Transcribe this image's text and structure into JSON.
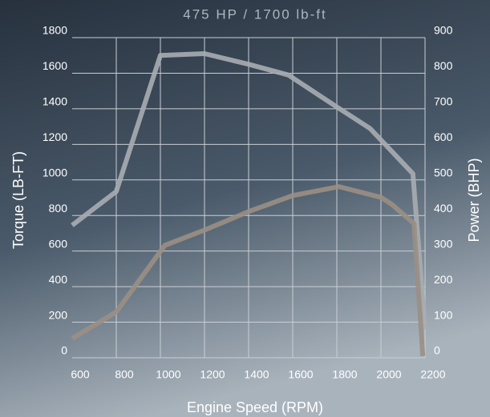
{
  "chart_data": {
    "type": "line",
    "title": "475 HP / 1700 lb-ft",
    "xlabel": "Engine Speed (RPM)",
    "ylabel": "Torque (LB-FT)",
    "y2label": "Power (BHP)",
    "xlim": [
      600,
      2200
    ],
    "xticks": [
      600,
      800,
      1000,
      1200,
      1400,
      1600,
      1800,
      2000,
      2200
    ],
    "ylim": [
      0,
      1800
    ],
    "yticks": [
      0,
      200,
      400,
      600,
      800,
      1000,
      1200,
      1400,
      1600,
      1800
    ],
    "y2lim": [
      0,
      900
    ],
    "y2ticks": [
      0,
      100,
      200,
      300,
      400,
      500,
      600,
      700,
      800,
      900
    ],
    "grid": true,
    "series": [
      {
        "name": "Torque",
        "color": "#a9adb2",
        "x": [
          600,
          800,
          1000,
          1200,
          1400,
          1580,
          1800,
          1950,
          2145,
          2200
        ],
        "values": [
          745,
          935,
          1700,
          1710,
          1650,
          1590,
          1410,
          1290,
          1035,
          160
        ]
      },
      {
        "name": "Power",
        "color": "#9a8f84",
        "axis": "y2",
        "x": [
          600,
          800,
          1020,
          1200,
          1400,
          1600,
          1810,
          2000,
          2050,
          2150,
          2190
        ],
        "values": [
          54,
          129,
          316,
          359,
          411,
          456,
          481,
          451,
          431,
          377,
          5
        ]
      }
    ]
  }
}
